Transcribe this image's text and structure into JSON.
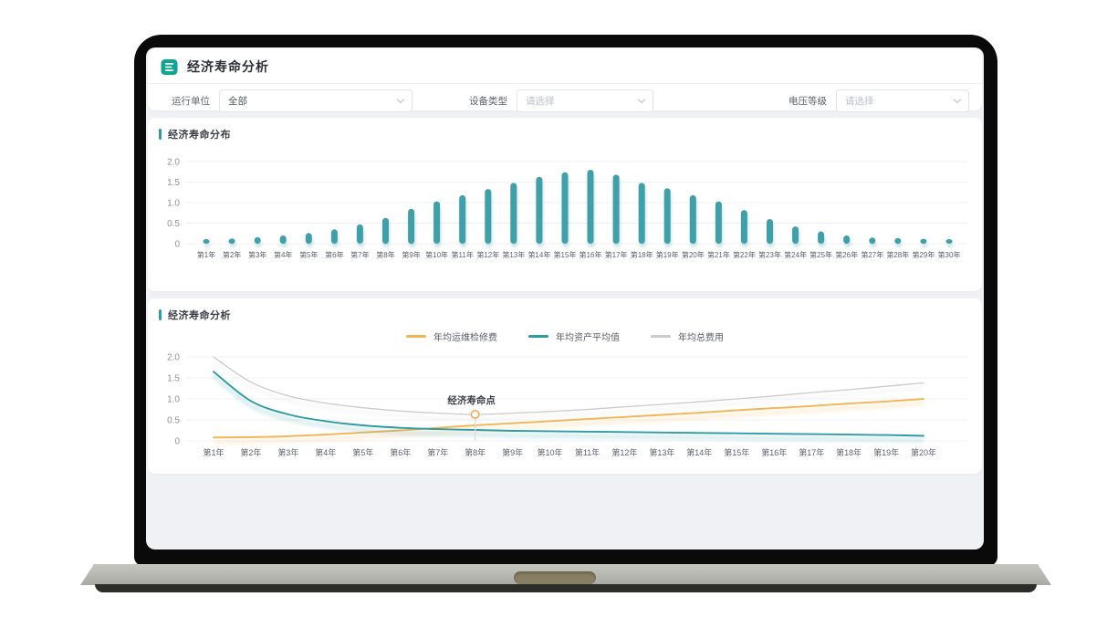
{
  "app": {
    "title": "经济寿命分析",
    "logo_color": "#0fa593",
    "accent_color": "#2e9ca4"
  },
  "filters": [
    {
      "label": "运行单位",
      "value": "全部",
      "is_placeholder": false
    },
    {
      "label": "设备类型",
      "value": "请选择",
      "is_placeholder": true
    },
    {
      "label": "电压等级",
      "value": "请选择",
      "is_placeholder": true
    }
  ],
  "chart_data": [
    {
      "type": "bar",
      "title": "经济寿命分布",
      "categories": [
        "第1年",
        "第2年",
        "第3年",
        "第4年",
        "第5年",
        "第6年",
        "第7年",
        "第8年",
        "第9年",
        "第10年",
        "第11年",
        "第12年",
        "第13年",
        "第14年",
        "第15年",
        "第16年",
        "第17年",
        "第18年",
        "第19年",
        "第20年",
        "第21年",
        "第22年",
        "第23年",
        "第24年",
        "第25年",
        "第26年",
        "第27年",
        "第28年",
        "第29年",
        "第30年"
      ],
      "values": [
        0.1,
        0.13,
        0.16,
        0.2,
        0.26,
        0.35,
        0.47,
        0.63,
        0.85,
        1.03,
        1.18,
        1.33,
        1.48,
        1.63,
        1.74,
        1.8,
        1.68,
        1.48,
        1.35,
        1.18,
        1.03,
        0.82,
        0.6,
        0.42,
        0.3,
        0.2,
        0.15,
        0.14,
        0.12,
        0.08
      ],
      "bar_color": "#3fa0a9",
      "ylim": [
        0,
        2.0
      ],
      "yticks": [
        0,
        0.5,
        1.0,
        1.5,
        2.0
      ],
      "ytick_labels": [
        "0",
        "0.5",
        "1.0",
        "1.5",
        "2.0"
      ],
      "grid": true,
      "xlabel": "",
      "ylabel": ""
    },
    {
      "type": "line",
      "title": "经济寿命分析",
      "categories": [
        "第1年",
        "第2年",
        "第3年",
        "第4年",
        "第5年",
        "第6年",
        "第7年",
        "第8年",
        "第9年",
        "第10年",
        "第11年",
        "第12年",
        "第13年",
        "第14年",
        "第15年",
        "第16年",
        "第17年",
        "第18年",
        "第19年",
        "第20年"
      ],
      "series": [
        {
          "name": "年均运维检修费",
          "color": "#f6b352",
          "values": [
            0.08,
            0.09,
            0.11,
            0.15,
            0.2,
            0.25,
            0.31,
            0.37,
            0.42,
            0.47,
            0.52,
            0.57,
            0.62,
            0.67,
            0.73,
            0.78,
            0.83,
            0.89,
            0.94,
            1.0
          ]
        },
        {
          "name": "年均资产平均值",
          "color": "#2e9ca4",
          "values": [
            1.65,
            0.95,
            0.63,
            0.47,
            0.37,
            0.31,
            0.28,
            0.26,
            0.24,
            0.23,
            0.22,
            0.21,
            0.2,
            0.19,
            0.18,
            0.17,
            0.16,
            0.15,
            0.14,
            0.12
          ]
        },
        {
          "name": "年均总费用",
          "color": "#cbcbcb",
          "values": [
            2.0,
            1.4,
            1.07,
            0.9,
            0.79,
            0.71,
            0.66,
            0.63,
            0.66,
            0.7,
            0.75,
            0.81,
            0.87,
            0.93,
            1.0,
            1.07,
            1.15,
            1.22,
            1.3,
            1.38
          ]
        }
      ],
      "annotation": {
        "label": "经济寿命点",
        "series": "年均总费用",
        "x_index": 7,
        "value": 0.63,
        "marker_color": "#f6a94f"
      },
      "legend_position": "top-center",
      "ylim": [
        0,
        2.0
      ],
      "yticks": [
        0,
        0.5,
        1.0,
        1.5,
        2.0
      ],
      "ytick_labels": [
        "0",
        "0.5",
        "1.0",
        "1.5",
        "2.0"
      ],
      "grid": true,
      "xlabel": "",
      "ylabel": ""
    }
  ]
}
